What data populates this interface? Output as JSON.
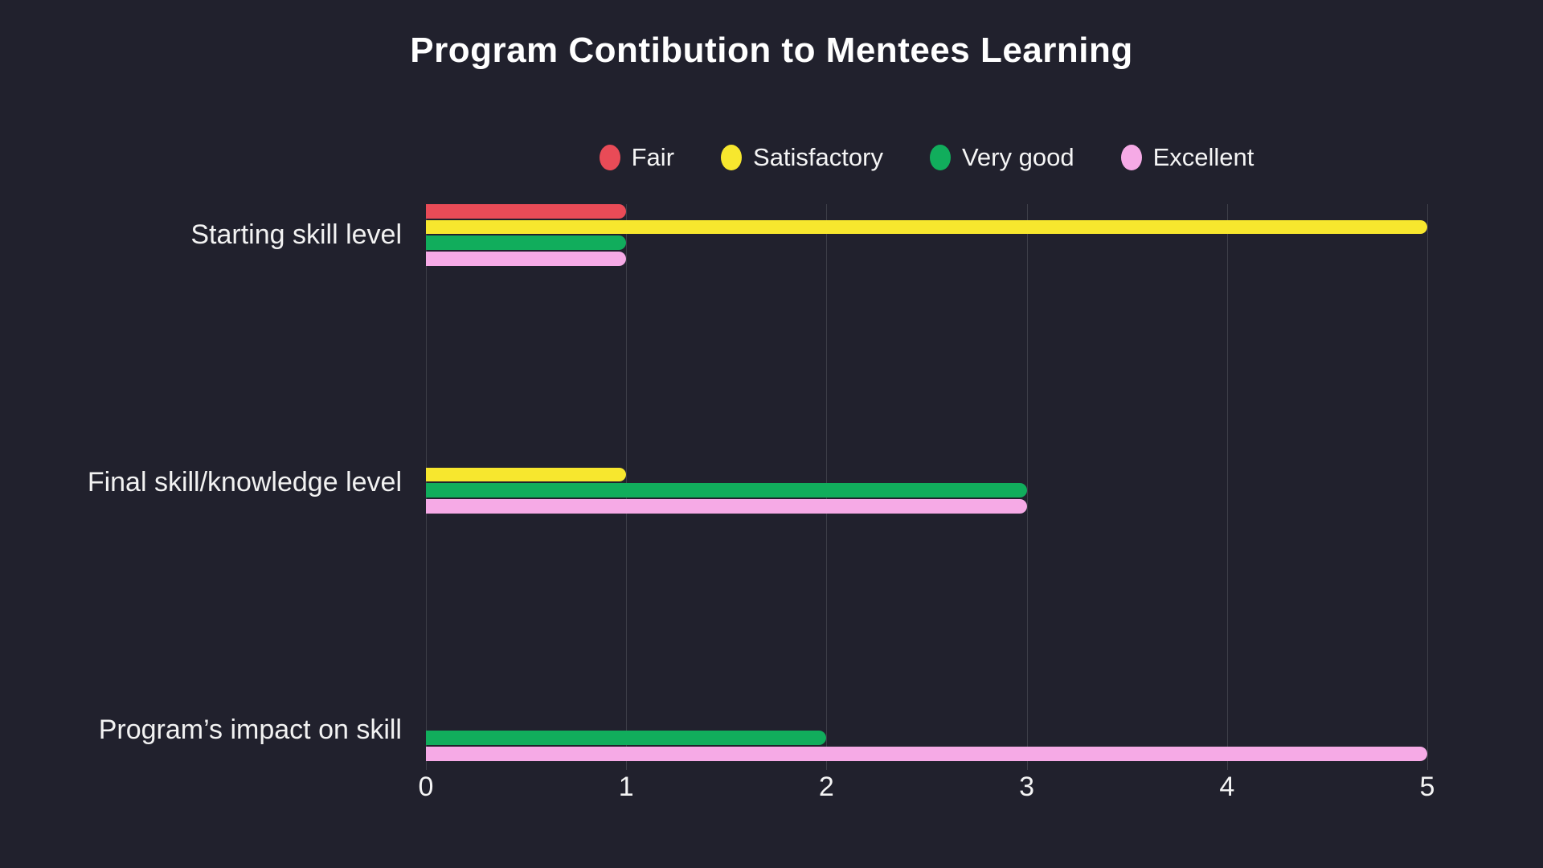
{
  "title": "Program Contibution to Mentees Learning",
  "chart_data": {
    "type": "bar",
    "orientation": "horizontal",
    "title": "Program Contibution to Mentees Learning",
    "categories": [
      "Starting skill level",
      "Final skill/knowledge level",
      "Program’s impact on skill"
    ],
    "series": [
      {
        "name": "Fair",
        "color": "#e94b57",
        "values": [
          1,
          0,
          0
        ]
      },
      {
        "name": "Satisfactory",
        "color": "#f7e72e",
        "values": [
          5,
          1,
          0
        ]
      },
      {
        "name": "Very good",
        "color": "#11ad5c",
        "values": [
          1,
          3,
          2
        ]
      },
      {
        "name": "Excellent",
        "color": "#f6aae6",
        "values": [
          1,
          3,
          5
        ]
      }
    ],
    "xlabel": "",
    "ylabel": "",
    "x_ticks": [
      0,
      1,
      2,
      3,
      4,
      5
    ],
    "xlim": [
      0,
      5
    ],
    "grid": "vertical",
    "legend_position": "top",
    "colors": {
      "background": "#21212d",
      "gridline": "#3d3e48",
      "text": "#f5f5f5",
      "title_text": "#ffffff"
    }
  }
}
